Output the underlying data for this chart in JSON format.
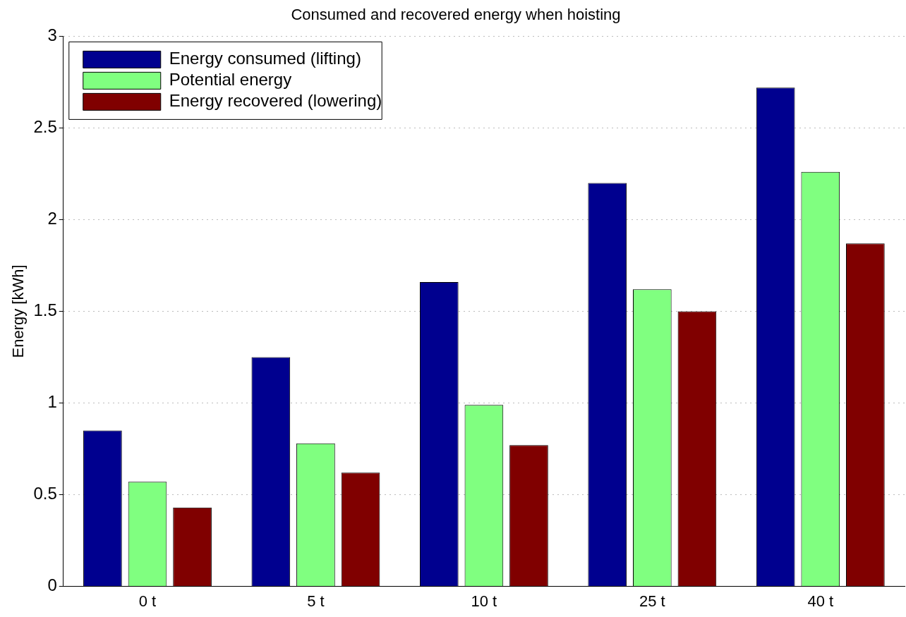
{
  "chart_data": {
    "type": "bar",
    "title": "Consumed and recovered energy when hoisting",
    "ylabel": "Energy [kWh]",
    "categories": [
      "0 t",
      "5 t",
      "10 t",
      "25 t",
      "40 t"
    ],
    "series": [
      {
        "name": "Energy consumed (lifting)",
        "color": "#00008f",
        "values": [
          0.85,
          1.25,
          1.66,
          2.2,
          2.72
        ]
      },
      {
        "name": "Potential energy",
        "color": "#80ff80",
        "values": [
          0.57,
          0.78,
          0.99,
          1.62,
          2.26
        ]
      },
      {
        "name": "Energy recovered (lowering)",
        "color": "#800000",
        "values": [
          0.43,
          0.62,
          0.77,
          1.5,
          1.87
        ]
      }
    ],
    "ylim": [
      0,
      3
    ],
    "yticks": [
      0,
      0.5,
      1,
      1.5,
      2,
      2.5,
      3
    ],
    "grid": "y",
    "legend": "top left"
  }
}
